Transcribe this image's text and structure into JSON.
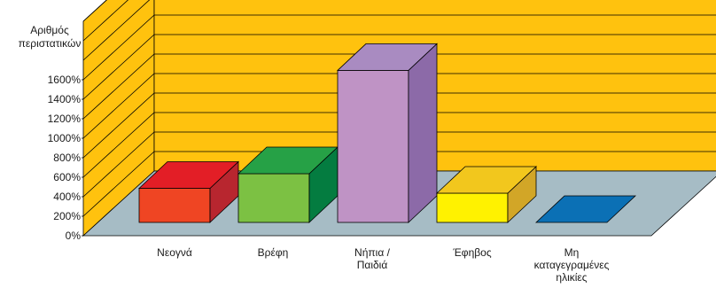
{
  "chart_data": {
    "type": "bar",
    "ylabel_lines": [
      "Αριθμός",
      "περιστατικών"
    ],
    "categories": [
      [
        "Νεογνά"
      ],
      [
        "Βρέφη"
      ],
      [
        "Νήπια /",
        "Παιδιά"
      ],
      [
        "Έφηβος"
      ],
      [
        "Μη",
        "καταγεγραμένες",
        "ηλικίες"
      ]
    ],
    "values": [
      350,
      500,
      1560,
      300,
      0
    ],
    "yticks": [
      "0%",
      "200%",
      "400%",
      "600%",
      "800%",
      "1000%",
      "1200%",
      "1400%",
      "1600%"
    ],
    "ylim": [
      0,
      1600
    ],
    "grid": true,
    "colors": {
      "wall": "#ffc20e",
      "floor": "#a6bcc5",
      "bars": [
        {
          "front": "#ef4523",
          "top": "#e31e26",
          "side": "#b8262f"
        },
        {
          "front": "#7cc143",
          "top": "#26a146",
          "side": "#047c40"
        },
        {
          "front": "#bf93c5",
          "top": "#a98bc1",
          "side": "#8c6aa8"
        },
        {
          "front": "#fff200",
          "top": "#f2c71d",
          "side": "#d2a627"
        },
        {
          "front": "#0b70b5",
          "top": "#0b70b5",
          "side": "#0b70b5"
        }
      ]
    }
  }
}
